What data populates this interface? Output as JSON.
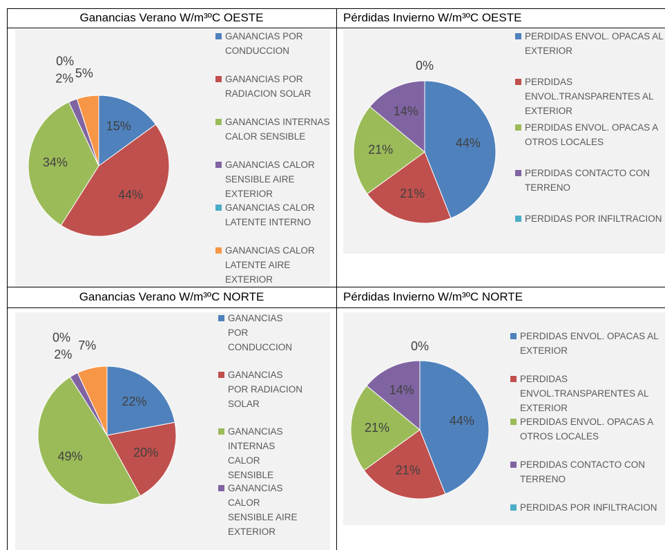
{
  "chart_data": [
    {
      "type": "pie",
      "title": "Ganancias Verano W/m³ºC OESTE",
      "categories": [
        "GANANCIAS POR CONDUCCION",
        "GANANCIAS POR RADIACION SOLAR",
        "GANANCIAS INTERNAS CALOR SENSIBLE",
        "GANANCIAS CALOR SENSIBLE AIRE EXTERIOR",
        "GANANCIAS CALOR LATENTE INTERNO",
        "GANANCIAS CALOR LATENTE AIRE EXTERIOR"
      ],
      "values": [
        15,
        44,
        34,
        2,
        0,
        5
      ],
      "value_labels": [
        "15%",
        "44%",
        "34%",
        "2%",
        "0%",
        "5%"
      ],
      "colors": [
        "#4f81bd",
        "#c0504d",
        "#9bbb59",
        "#8064a2",
        "#4bacc6",
        "#f79646"
      ]
    },
    {
      "type": "pie",
      "title": "Pérdidas Invierno W/m³ºC OESTE",
      "categories": [
        "PERDIDAS ENVOL. OPACAS AL EXTERIOR",
        "PERDIDAS ENVOL.TRANSPARENTES AL EXTERIOR",
        "PERDIDAS ENVOL. OPACAS A OTROS LOCALES",
        "PERDIDAS CONTACTO CON TERRENO",
        "PERDIDAS POR INFILTRACION"
      ],
      "values": [
        44,
        21,
        21,
        14,
        0
      ],
      "value_labels": [
        "44%",
        "21%",
        "21%",
        "14%",
        "0%"
      ],
      "colors": [
        "#4f81bd",
        "#c0504d",
        "#9bbb59",
        "#8064a2",
        "#4bacc6"
      ]
    },
    {
      "type": "pie",
      "title": "Ganancias Verano W/m³ºC NORTE",
      "categories": [
        "GANANCIAS POR CONDUCCION",
        "GANANCIAS POR RADIACION SOLAR",
        "GANANCIAS INTERNAS CALOR SENSIBLE",
        "GANANCIAS CALOR SENSIBLE AIRE EXTERIOR",
        null,
        null
      ],
      "values": [
        22,
        20,
        49,
        2,
        0,
        7
      ],
      "value_labels": [
        "22%",
        "20%",
        "49%",
        "2%",
        "0%",
        "7%"
      ],
      "colors": [
        "#4f81bd",
        "#c0504d",
        "#9bbb59",
        "#8064a2",
        "#4bacc6",
        "#f79646"
      ]
    },
    {
      "type": "pie",
      "title": "Pérdidas Invierno W/m³ºC NORTE",
      "categories": [
        "PERDIDAS ENVOL. OPACAS AL EXTERIOR",
        "PERDIDAS ENVOL.TRANSPARENTES AL EXTERIOR",
        "PERDIDAS ENVOL. OPACAS A OTROS LOCALES",
        "PERDIDAS CONTACTO CON TERRENO",
        "PERDIDAS POR INFILTRACION"
      ],
      "values": [
        44,
        21,
        21,
        14,
        0
      ],
      "value_labels": [
        "44%",
        "21%",
        "21%",
        "14%",
        "0%"
      ],
      "colors": [
        "#4f81bd",
        "#c0504d",
        "#9bbb59",
        "#8064a2",
        "#4bacc6"
      ]
    }
  ]
}
